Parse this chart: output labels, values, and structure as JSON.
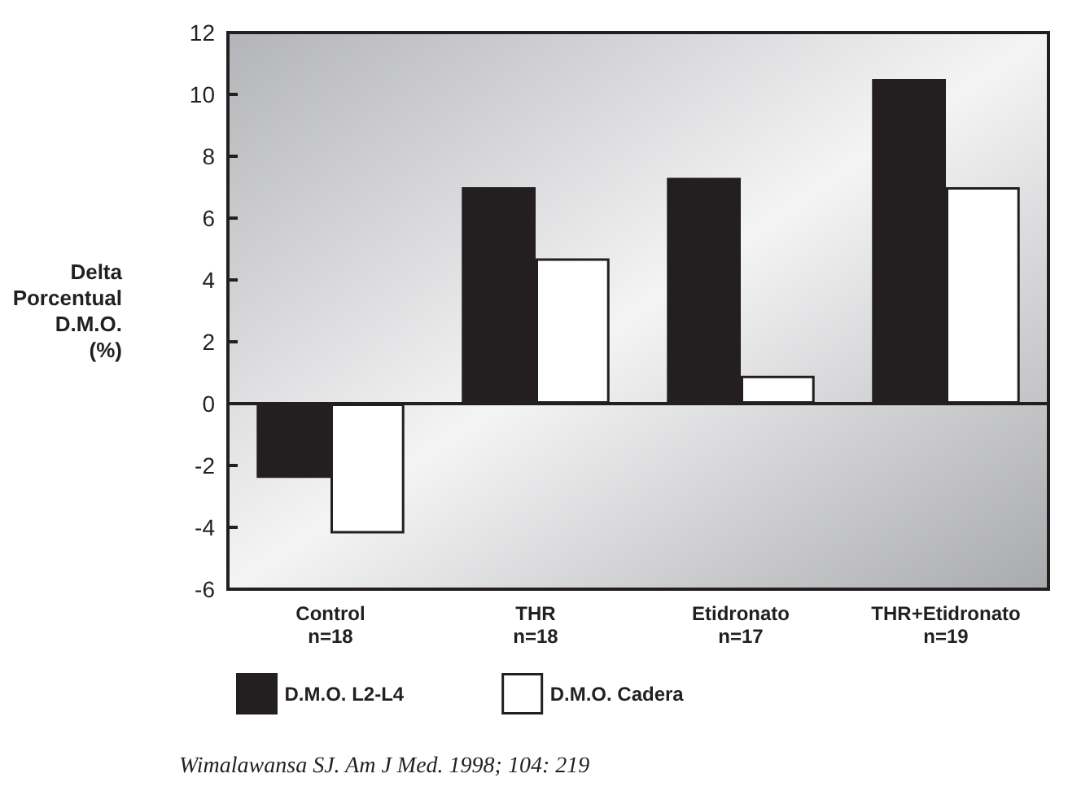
{
  "chart_data": {
    "type": "bar",
    "ylabel": "Delta\nPorcentual\nD.M.O.\n(%)",
    "categories": [
      "Control\nn=18",
      "THR\nn=18",
      "Etidronato\nn=17",
      "THR+Etidronato\nn=19"
    ],
    "series": [
      {
        "name": "D.M.O. L2-L4",
        "color": "#231f20",
        "values": [
          -2.4,
          7.0,
          7.3,
          10.5
        ]
      },
      {
        "name": "D.M.O. Cadera",
        "color": "#ffffff",
        "values": [
          -4.2,
          4.7,
          0.9,
          7.0
        ]
      }
    ],
    "ylim": [
      -6,
      12
    ],
    "yticks": [
      -6,
      -4,
      -2,
      0,
      2,
      4,
      6,
      8,
      10,
      12
    ],
    "legend": "bottom left",
    "annotations": [
      "Wimalawansa SJ. Am J Med. 1998; 104: 219"
    ]
  }
}
